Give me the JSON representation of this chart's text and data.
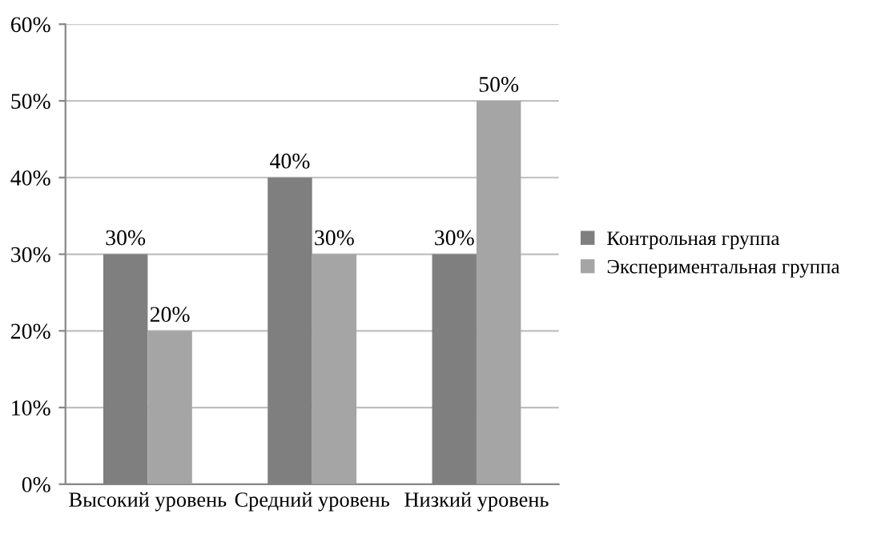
{
  "chart_data": {
    "type": "bar",
    "categories": [
      "Высокий уровень",
      "Средний уровень",
      "Низкий уровень"
    ],
    "series": [
      {
        "name": "Контрольная группа",
        "color": "#7f7f7f",
        "values": [
          30,
          40,
          30
        ],
        "value_labels": [
          "30%",
          "40%",
          "30%"
        ]
      },
      {
        "name": "Экспериментальная группа",
        "color": "#a5a5a5",
        "values": [
          20,
          30,
          50
        ],
        "value_labels": [
          "20%",
          "30%",
          "50%"
        ]
      }
    ],
    "ylim": [
      0,
      60
    ],
    "yticks": [
      {
        "value": 0,
        "label": "0%"
      },
      {
        "value": 10,
        "label": "10%"
      },
      {
        "value": 20,
        "label": "20%"
      },
      {
        "value": 30,
        "label": "30%"
      },
      {
        "value": 40,
        "label": "40%"
      },
      {
        "value": 50,
        "label": "50%"
      },
      {
        "value": 60,
        "label": "60%"
      }
    ],
    "grid": "y",
    "legend": "right"
  }
}
